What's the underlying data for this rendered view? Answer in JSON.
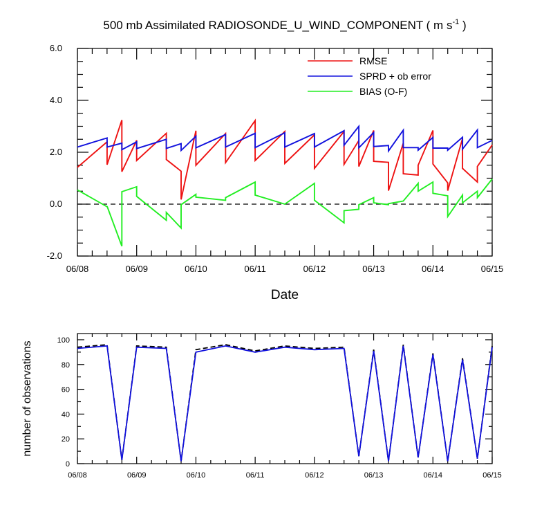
{
  "title": {
    "main": "500 mb Assimilated RADIOSONDE_U_WIND_COMPONENT ( m s",
    "sup": "-1",
    "tail": " )"
  },
  "chart_data": [
    {
      "type": "line",
      "xlabel": "Date",
      "ylabel": "",
      "xlim": [
        0,
        7
      ],
      "ylim": [
        -2,
        6
      ],
      "x_ticks": [
        0,
        1,
        2,
        3,
        4,
        5,
        6,
        7
      ],
      "x_tick_labels": [
        "06/08",
        "06/09",
        "06/10",
        "06/11",
        "06/12",
        "06/13",
        "06/14",
        "06/15"
      ],
      "y_ticks": [
        -2,
        0,
        2,
        4,
        6
      ],
      "y_tick_labels": [
        "-2.0",
        "0.0",
        "2.0",
        "4.0",
        "6.0"
      ],
      "reference_line": {
        "y": 0,
        "style": "dashed"
      },
      "legend_position": "top-right",
      "series": [
        {
          "name": "RMSE",
          "color": "#ee1111",
          "x": [
            0,
            0.5,
            0.5,
            0.75,
            0.75,
            1,
            1,
            1.5,
            1.5,
            1.75,
            1.75,
            2,
            2,
            2.5,
            2.5,
            3,
            3,
            3.5,
            3.5,
            4,
            4,
            4.5,
            4.5,
            4.75,
            4.75,
            5,
            5,
            5.25,
            5.25,
            5.5,
            5.5,
            5.75,
            5.75,
            6,
            6,
            6.25,
            6.25,
            6.5,
            6.5,
            6.75,
            6.75,
            7
          ],
          "y": [
            1.42,
            2.4,
            1.52,
            3.24,
            1.25,
            2.46,
            1.68,
            2.73,
            1.72,
            1.27,
            0.18,
            2.83,
            1.5,
            2.72,
            1.6,
            3.22,
            1.68,
            2.8,
            1.57,
            2.67,
            1.38,
            2.8,
            1.53,
            2.45,
            1.45,
            2.84,
            1.65,
            1.61,
            0.52,
            2.35,
            1.17,
            1.12,
            1.5,
            2.84,
            1.55,
            0.82,
            0.52,
            2.53,
            1.38,
            0.85,
            1.45,
            2.28
          ]
        },
        {
          "name": "SPRD + ob error",
          "color": "#1111dd",
          "x": [
            0,
            0.5,
            0.5,
            0.75,
            0.75,
            1,
            1,
            1.5,
            1.5,
            1.75,
            1.75,
            2,
            2,
            2.5,
            2.5,
            3,
            3,
            3.5,
            3.5,
            4,
            4,
            4.5,
            4.5,
            4.75,
            4.75,
            5,
            5,
            5.25,
            5.25,
            5.5,
            5.5,
            5.75,
            5.75,
            6,
            6,
            6.25,
            6.25,
            6.5,
            6.5,
            6.75,
            6.75,
            7
          ],
          "y": [
            2.2,
            2.55,
            2.2,
            2.35,
            2.1,
            2.4,
            2.14,
            2.5,
            2.15,
            2.33,
            2.07,
            2.62,
            2.17,
            2.68,
            2.2,
            2.73,
            2.18,
            2.75,
            2.2,
            2.72,
            2.2,
            2.83,
            2.27,
            3.0,
            2.17,
            2.76,
            2.22,
            2.26,
            2.05,
            2.85,
            2.18,
            2.18,
            2.08,
            2.57,
            2.16,
            2.16,
            2.08,
            2.58,
            2.12,
            2.86,
            2.18,
            2.46
          ]
        },
        {
          "name": "BIAS (O-F)",
          "color": "#22ee22",
          "x": [
            0,
            0.5,
            0.5,
            0.75,
            0.75,
            1,
            1,
            1.5,
            1.5,
            1.75,
            1.75,
            2,
            2,
            2.5,
            2.5,
            3,
            3,
            3.5,
            3.5,
            4,
            4,
            4.5,
            4.5,
            4.75,
            4.75,
            5,
            5,
            5.25,
            5.25,
            5.5,
            5.5,
            5.75,
            5.75,
            6,
            6,
            6.25,
            6.25,
            6.5,
            6.5,
            6.75,
            6.75,
            7
          ],
          "y": [
            0.55,
            -0.1,
            -0.08,
            -1.62,
            0.48,
            0.67,
            0.3,
            -0.62,
            -0.32,
            -0.92,
            -0.02,
            0.38,
            0.27,
            0.15,
            0.25,
            0.85,
            0.35,
            0.0,
            0.0,
            0.8,
            0.15,
            -0.72,
            -0.25,
            -0.2,
            -0.02,
            0.25,
            0.05,
            -0.02,
            0.02,
            0.12,
            0.12,
            0.8,
            0.5,
            0.85,
            0.42,
            0.32,
            -0.48,
            0.35,
            0.05,
            0.5,
            0.25,
            0.97
          ]
        }
      ]
    },
    {
      "type": "line",
      "xlabel": "",
      "ylabel": "number of observations",
      "xlim": [
        0,
        7
      ],
      "ylim": [
        0,
        105
      ],
      "x_ticks": [
        0,
        1,
        2,
        3,
        4,
        5,
        6,
        7
      ],
      "x_tick_labels": [
        "06/08",
        "06/09",
        "06/10",
        "06/11",
        "06/12",
        "06/13",
        "06/14",
        "06/15"
      ],
      "y_ticks": [
        0,
        20,
        40,
        60,
        80,
        100
      ],
      "y_tick_labels": [
        "0",
        "20",
        "40",
        "60",
        "80",
        "100"
      ],
      "series": [
        {
          "color": "#000000",
          "style": "dashed",
          "x": [
            0,
            0.5,
            0.75,
            1,
            1.5,
            1.75,
            2,
            2.5,
            3,
            3.5,
            4,
            4.5,
            4.75,
            5,
            5.25,
            5.5,
            5.75,
            6,
            6.25,
            6.5,
            6.75,
            7
          ],
          "y": [
            94,
            96,
            3,
            95,
            94,
            2,
            92,
            96,
            91,
            95,
            93,
            94,
            6,
            92,
            2,
            96,
            5,
            89,
            2,
            85,
            4,
            95
          ]
        },
        {
          "color": "#1111dd",
          "style": "solid",
          "x": [
            0,
            0.5,
            0.75,
            1,
            1.5,
            1.75,
            2,
            2.5,
            3,
            3.5,
            4,
            4.5,
            4.75,
            5,
            5.25,
            5.5,
            5.75,
            6,
            6.25,
            6.5,
            6.75,
            7
          ],
          "y": [
            93,
            95,
            3,
            94,
            93,
            2,
            90,
            95,
            90,
            94,
            92,
            93,
            6,
            91,
            2,
            95,
            5,
            88,
            2,
            84,
            4,
            94
          ]
        }
      ]
    }
  ]
}
